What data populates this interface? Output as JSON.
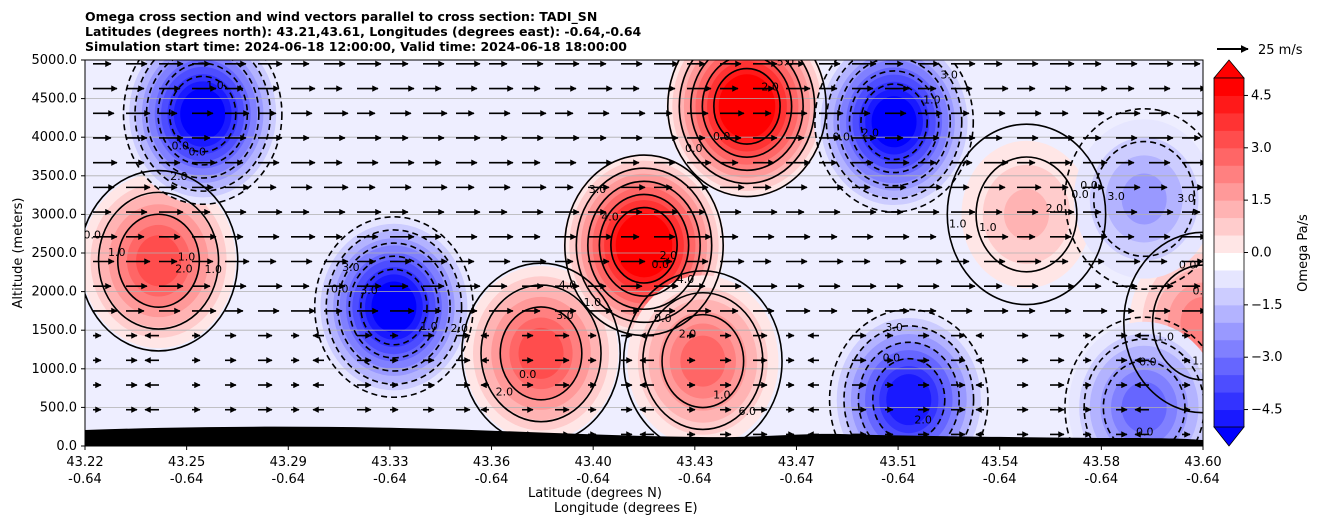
{
  "title": {
    "line1": "Omega cross section and wind vectors parallel to cross section: TADI_SN",
    "line2": "Latitudes (degrees north): 43.21,43.61, Longitudes (degrees east): -0.64,-0.64",
    "line3": "Simulation start time: 2024-06-18 12:00:00, Valid time: 2024-06-18 18:00:00"
  },
  "chart_data": {
    "type": "heatmap",
    "ylabel": "Altitude (meters)",
    "xlabel_line1": "Latitude (degrees N)",
    "xlabel_line2": "Longitude (degrees E)",
    "ylim": [
      0,
      5000
    ],
    "y_ticks": [
      "0.0",
      "500.0",
      "1000.0",
      "1500.0",
      "2000.0",
      "2500.0",
      "3000.0",
      "3500.0",
      "4000.0",
      "4500.0",
      "5000.0"
    ],
    "x_ticks_lat": [
      "43.22",
      "43.25",
      "43.29",
      "43.33",
      "43.36",
      "43.40",
      "43.43",
      "43.47",
      "43.51",
      "43.54",
      "43.58",
      "43.60"
    ],
    "x_ticks_lon": [
      "-0.64",
      "-0.64",
      "-0.64",
      "-0.64",
      "-0.64",
      "-0.64",
      "-0.64",
      "-0.64",
      "-0.64",
      "-0.64",
      "-0.64",
      "-0.64"
    ],
    "colorbar": {
      "label": "Omega Pa/s",
      "range": [
        -5,
        5
      ],
      "ticks": [
        "4.5",
        "3.0",
        "1.5",
        "0.0",
        "−1.5",
        "−3.0",
        "−4.5"
      ],
      "extend": "both",
      "colormap": "bwr"
    },
    "vector_reference": "25 m/s",
    "grid": "horizontal",
    "contour_labels": [
      "1.0",
      "0.0",
      "0.0",
      "4.0",
      "2.0",
      "0.0",
      "0.0",
      "3.0",
      "2.0",
      "1.0",
      "0.0",
      "3.0",
      "0.0",
      "1.0",
      "0.0",
      "2.0",
      "0.0",
      "4.0",
      "5.0",
      "6.0",
      "2.0",
      "0.0",
      "0.0",
      "3.0",
      "3.0",
      "0.0",
      "1.0",
      "2.0",
      "3.0",
      "3.0",
      "4.0",
      "0.0",
      "2.0",
      "1.0",
      "0.0",
      "1.0",
      "0.0",
      "3.0",
      "0.0",
      "0.0",
      "1.0",
      "1.0",
      "2.0",
      "3.0",
      "2.0",
      "1.0",
      "0.0",
      "3.0",
      "2.0",
      "1.0",
      "0.0",
      "1.0",
      "2.0",
      "0.0",
      "3.0",
      "1.0",
      "0.0"
    ],
    "omega_centers": [
      {
        "x": 43.245,
        "y": 2400,
        "v": 3.5
      },
      {
        "x": 43.26,
        "y": 4300,
        "v": -5.0
      },
      {
        "x": 43.325,
        "y": 1800,
        "v": -5.0
      },
      {
        "x": 43.375,
        "y": 1200,
        "v": 3.2
      },
      {
        "x": 43.41,
        "y": 2600,
        "v": 5.5
      },
      {
        "x": 43.445,
        "y": 4400,
        "v": 5.5
      },
      {
        "x": 43.43,
        "y": 1100,
        "v": 3.0
      },
      {
        "x": 43.495,
        "y": 4200,
        "v": -5.0
      },
      {
        "x": 43.5,
        "y": 600,
        "v": -4.5
      },
      {
        "x": 43.54,
        "y": 3000,
        "v": 1.5
      },
      {
        "x": 43.6,
        "y": 1600,
        "v": 2.5
      },
      {
        "x": 43.58,
        "y": 3200,
        "v": -2.0
      },
      {
        "x": 43.58,
        "y": 500,
        "v": -3.0
      }
    ]
  }
}
